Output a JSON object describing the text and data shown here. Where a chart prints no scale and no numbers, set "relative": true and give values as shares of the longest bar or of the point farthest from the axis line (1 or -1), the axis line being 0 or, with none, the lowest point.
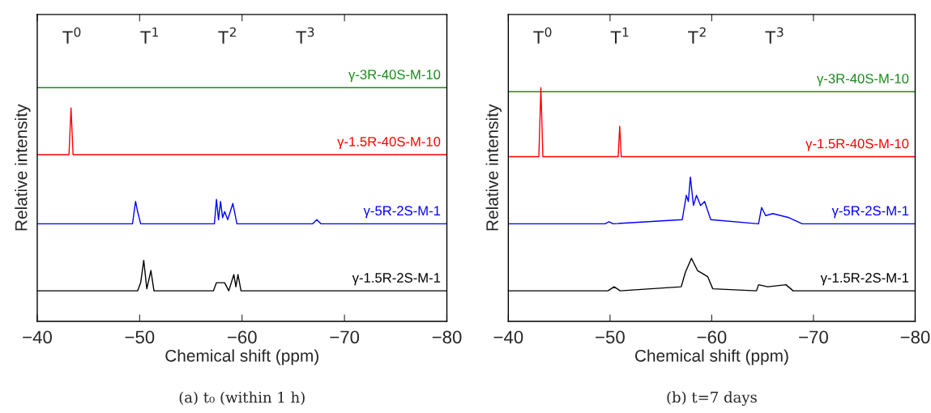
{
  "chart_data": [
    {
      "type": "line",
      "title": "(a) t₀ (within 1 h)",
      "xlabel": "Chemical shift (ppm)",
      "ylabel": "Relative intensity",
      "relative": true,
      "xlim": [
        -40,
        -80
      ],
      "xticks": [
        {
          "value": -40,
          "label": "−40"
        },
        {
          "value": -50,
          "label": "−50"
        },
        {
          "value": -60,
          "label": "−60"
        },
        {
          "value": -70,
          "label": "−70"
        },
        {
          "value": -80,
          "label": "−80"
        }
      ],
      "grid": false,
      "legend": false,
      "annotations": [
        "T$^{0}$",
        "T$^{1}$",
        "T$^{2}$",
        "T$^{3}$"
      ],
      "series": [
        {
          "name": "γ-3R-40S-M-10",
          "color": "#1a8a1a",
          "x": [
            -40,
            -80
          ],
          "values": [
            1.0,
            1.0
          ]
        },
        {
          "name": "γ-1.5R-40S-M-10",
          "color": "#ff0000",
          "x": [
            -40,
            -43.1,
            -43.3,
            -43.5,
            -80
          ],
          "values": [
            0.67,
            0.67,
            0.9,
            0.67,
            0.67
          ]
        },
        {
          "name": "γ-5R-2S-M-1",
          "color": "#0000ff",
          "x": [
            -40,
            -49.3,
            -49.6,
            -49.8,
            -50.1,
            -57.3,
            -57.5,
            -57.7,
            -57.9,
            -58.1,
            -58.3,
            -58.6,
            -59.1,
            -59.5,
            -66.9,
            -67.3,
            -67.7,
            -80
          ],
          "values": [
            0.33,
            0.33,
            0.44,
            0.39,
            0.33,
            0.33,
            0.45,
            0.35,
            0.44,
            0.36,
            0.39,
            0.35,
            0.43,
            0.33,
            0.33,
            0.35,
            0.33,
            0.33
          ]
        },
        {
          "name": "γ-1.5R-2S-M-1",
          "color": "#000000",
          "x": [
            -40,
            -49.8,
            -50.1,
            -50.4,
            -50.7,
            -51.1,
            -51.4,
            -57.2,
            -57.5,
            -58.3,
            -58.7,
            -59.2,
            -59.4,
            -59.6,
            -59.9,
            -80
          ],
          "values": [
            0,
            0,
            0.04,
            0.15,
            0.01,
            0.1,
            0,
            0,
            0.04,
            0.04,
            0,
            0.08,
            0.02,
            0.08,
            0,
            0
          ]
        }
      ]
    },
    {
      "type": "line",
      "title": "(b) t=7 days",
      "xlabel": "Chemical shift (ppm)",
      "ylabel": "Relative intensity",
      "relative": true,
      "xlim": [
        -40,
        -80
      ],
      "xticks": [
        {
          "value": -40,
          "label": "−40"
        },
        {
          "value": -50,
          "label": "−50"
        },
        {
          "value": -60,
          "label": "−60"
        },
        {
          "value": -70,
          "label": "−70"
        },
        {
          "value": -80,
          "label": "−80"
        }
      ],
      "grid": false,
      "legend": false,
      "annotations": [
        "T$^{0}$",
        "T$^{1}$",
        "T$^{2}$",
        "T$^{3}$"
      ],
      "series": [
        {
          "name": "γ-3R-40S-M-10",
          "color": "#1a8a1a",
          "x": [
            -40,
            -80
          ],
          "values": [
            0.98,
            0.98
          ]
        },
        {
          "name": "γ-1.5R-40S-M-10",
          "color": "#ff0000",
          "x": [
            -40,
            -43.0,
            -43.2,
            -43.4,
            -50.8,
            -50.95,
            -51.1,
            -80
          ],
          "values": [
            0.66,
            0.66,
            1.0,
            0.66,
            0.66,
            0.81,
            0.66,
            0.66
          ]
        },
        {
          "name": "γ-5R-2S-M-1",
          "color": "#0000ff",
          "x": [
            -40,
            -49.5,
            -49.9,
            -50.3,
            -57.1,
            -57.5,
            -57.7,
            -57.9,
            -58.2,
            -58.5,
            -58.9,
            -59.3,
            -59.9,
            -64.6,
            -64.9,
            -65.3,
            -66.0,
            -67.6,
            -68.9,
            -80
          ],
          "values": [
            0.33,
            0.33,
            0.34,
            0.33,
            0.35,
            0.47,
            0.44,
            0.56,
            0.42,
            0.47,
            0.42,
            0.44,
            0.35,
            0.33,
            0.41,
            0.37,
            0.38,
            0.36,
            0.33,
            0.33
          ]
        },
        {
          "name": "γ-1.5R-2S-M-1",
          "color": "#000000",
          "x": [
            -40,
            -49.8,
            -50.4,
            -51.0,
            -57.0,
            -57.4,
            -58.0,
            -58.6,
            -59.6,
            -60.1,
            -64.4,
            -64.6,
            -65.5,
            -67.3,
            -68.0,
            -80
          ],
          "values": [
            0,
            0,
            0.02,
            0,
            0.02,
            0.09,
            0.16,
            0.1,
            0.07,
            0.01,
            0,
            0.03,
            0.02,
            0.03,
            0,
            0
          ]
        }
      ]
    }
  ]
}
